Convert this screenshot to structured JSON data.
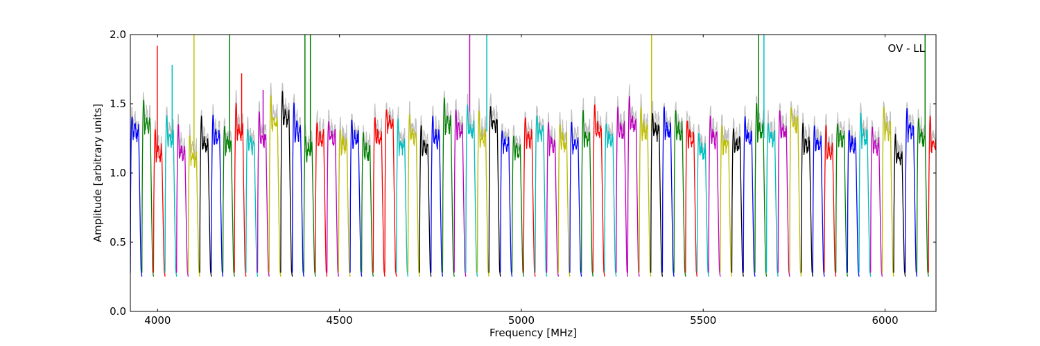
{
  "chart_data": {
    "type": "line",
    "title": "",
    "annotation": "OV - LL",
    "xlabel": "Frequency [MHz]",
    "ylabel": "Amplitude [arbitrary units]",
    "xlim": [
      3925,
      6140
    ],
    "ylim": [
      0.0,
      2.0
    ],
    "xticks": [
      4000,
      4500,
      5000,
      5500,
      6000
    ],
    "yticks": [
      0.0,
      0.5,
      1.0,
      1.5,
      2.0
    ],
    "ytick_labels": [
      "0.0",
      "0.5",
      "1.0",
      "1.5",
      "2.0"
    ],
    "grid": false,
    "legend": "none",
    "background_color": "#c0c0c0",
    "color_cycle": [
      "#0000ff",
      "#008000",
      "#ff0000",
      "#00bfbf",
      "#bf00bf",
      "#bfbf00",
      "#000000"
    ],
    "band_width_mhz": 31.8,
    "bands": [
      {
        "start": 3925.0,
        "color": "#0000ff",
        "level": 1.3,
        "spikes": []
      },
      {
        "start": 3956.8,
        "color": "#008000",
        "level": 1.35,
        "spikes": []
      },
      {
        "start": 3988.6,
        "color": "#ff0000",
        "level": 1.15,
        "spikes": [
          {
            "x": 3999.0,
            "y": 1.92
          }
        ]
      },
      {
        "start": 4020.4,
        "color": "#00bfbf",
        "level": 1.25,
        "spikes": [
          {
            "x": 4040.0,
            "y": 1.78
          }
        ]
      },
      {
        "start": 4052.2,
        "color": "#bf00bf",
        "level": 1.15,
        "spikes": []
      },
      {
        "start": 4084.0,
        "color": "#bfbf00",
        "level": 1.1,
        "spikes": [
          {
            "x": 4100.0,
            "y": 2.0
          }
        ]
      },
      {
        "start": 4115.8,
        "color": "#000000",
        "level": 1.2,
        "spikes": []
      },
      {
        "start": 4147.6,
        "color": "#0000ff",
        "level": 1.25,
        "spikes": []
      },
      {
        "start": 4179.4,
        "color": "#008000",
        "level": 1.2,
        "spikes": [
          {
            "x": 4198.0,
            "y": 2.0
          }
        ]
      },
      {
        "start": 4211.2,
        "color": "#ff0000",
        "level": 1.3,
        "spikes": [
          {
            "x": 4231.0,
            "y": 1.72
          }
        ]
      },
      {
        "start": 4243.0,
        "color": "#00bfbf",
        "level": 1.2,
        "spikes": []
      },
      {
        "start": 4274.8,
        "color": "#bf00bf",
        "level": 1.25,
        "spikes": [
          {
            "x": 4290.0,
            "y": 1.6
          }
        ]
      },
      {
        "start": 4306.6,
        "color": "#bfbf00",
        "level": 1.35,
        "spikes": []
      },
      {
        "start": 4338.4,
        "color": "#000000",
        "level": 1.4,
        "spikes": []
      },
      {
        "start": 4370.2,
        "color": "#0000ff",
        "level": 1.3,
        "spikes": []
      },
      {
        "start": 4402.0,
        "color": "#008000",
        "level": 1.15,
        "spikes": [
          {
            "x": 4405.0,
            "y": 2.0
          },
          {
            "x": 4420.0,
            "y": 2.0
          }
        ]
      },
      {
        "start": 4433.8,
        "color": "#ff0000",
        "level": 1.25,
        "spikes": []
      },
      {
        "start": 4465.6,
        "color": "#bf00bf",
        "level": 1.25,
        "spikes": []
      },
      {
        "start": 4497.4,
        "color": "#bfbf00",
        "level": 1.2,
        "spikes": []
      },
      {
        "start": 4529.2,
        "color": "#0000ff",
        "level": 1.25,
        "spikes": []
      },
      {
        "start": 4561.0,
        "color": "#008000",
        "level": 1.15,
        "spikes": []
      },
      {
        "start": 4592.8,
        "color": "#ff0000",
        "level": 1.25,
        "spikes": []
      },
      {
        "start": 4624.6,
        "color": "#ff0000",
        "level": 1.35,
        "spikes": []
      },
      {
        "start": 4656.4,
        "color": "#00bfbf",
        "level": 1.2,
        "spikes": []
      },
      {
        "start": 4688.2,
        "color": "#bfbf00",
        "level": 1.25,
        "spikes": []
      },
      {
        "start": 4720.0,
        "color": "#000000",
        "level": 1.18,
        "spikes": []
      },
      {
        "start": 4751.8,
        "color": "#0000ff",
        "level": 1.25,
        "spikes": []
      },
      {
        "start": 4783.6,
        "color": "#008000",
        "level": 1.35,
        "spikes": []
      },
      {
        "start": 4815.4,
        "color": "#bf00bf",
        "level": 1.3,
        "spikes": [
          {
            "x": 4858.0,
            "y": 2.0
          }
        ]
      },
      {
        "start": 4847.2,
        "color": "#00bfbf",
        "level": 1.3,
        "spikes": [
          {
            "x": 4905.0,
            "y": 2.0
          }
        ]
      },
      {
        "start": 4879.0,
        "color": "#bfbf00",
        "level": 1.25,
        "spikes": []
      },
      {
        "start": 4910.8,
        "color": "#000000",
        "level": 1.35,
        "spikes": []
      },
      {
        "start": 4942.6,
        "color": "#0000ff",
        "level": 1.2,
        "spikes": []
      },
      {
        "start": 4974.4,
        "color": "#008000",
        "level": 1.15,
        "spikes": []
      },
      {
        "start": 5006.2,
        "color": "#ff0000",
        "level": 1.25,
        "spikes": []
      },
      {
        "start": 5038.0,
        "color": "#00bfbf",
        "level": 1.3,
        "spikes": []
      },
      {
        "start": 5069.8,
        "color": "#bf00bf",
        "level": 1.2,
        "spikes": []
      },
      {
        "start": 5101.6,
        "color": "#bfbf00",
        "level": 1.22,
        "spikes": []
      },
      {
        "start": 5133.4,
        "color": "#0000ff",
        "level": 1.2,
        "spikes": []
      },
      {
        "start": 5165.2,
        "color": "#008000",
        "level": 1.25,
        "spikes": []
      },
      {
        "start": 5197.0,
        "color": "#ff0000",
        "level": 1.3,
        "spikes": []
      },
      {
        "start": 5228.8,
        "color": "#00bfbf",
        "level": 1.25,
        "spikes": []
      },
      {
        "start": 5260.6,
        "color": "#bf00bf",
        "level": 1.3,
        "spikes": []
      },
      {
        "start": 5292.4,
        "color": "#bf00bf",
        "level": 1.35,
        "spikes": []
      },
      {
        "start": 5324.2,
        "color": "#bfbf00",
        "level": 1.3,
        "spikes": [
          {
            "x": 5358.0,
            "y": 2.0
          }
        ]
      },
      {
        "start": 5356.0,
        "color": "#000000",
        "level": 1.3,
        "spikes": []
      },
      {
        "start": 5387.8,
        "color": "#0000ff",
        "level": 1.3,
        "spikes": []
      },
      {
        "start": 5419.6,
        "color": "#008000",
        "level": 1.3,
        "spikes": []
      },
      {
        "start": 5451.4,
        "color": "#ff0000",
        "level": 1.25,
        "spikes": []
      },
      {
        "start": 5483.2,
        "color": "#00bfbf",
        "level": 1.15,
        "spikes": []
      },
      {
        "start": 5515.0,
        "color": "#bf00bf",
        "level": 1.25,
        "spikes": []
      },
      {
        "start": 5546.8,
        "color": "#bfbf00",
        "level": 1.2,
        "spikes": []
      },
      {
        "start": 5578.6,
        "color": "#000000",
        "level": 1.2,
        "spikes": []
      },
      {
        "start": 5610.4,
        "color": "#0000ff",
        "level": 1.25,
        "spikes": []
      },
      {
        "start": 5642.2,
        "color": "#008000",
        "level": 1.3,
        "spikes": [
          {
            "x": 5652.0,
            "y": 2.0
          }
        ]
      },
      {
        "start": 5674.0,
        "color": "#00bfbf",
        "level": 1.25,
        "spikes": [
          {
            "x": 5667.0,
            "y": 2.0
          }
        ]
      },
      {
        "start": 5705.8,
        "color": "#bf00bf",
        "level": 1.3,
        "spikes": []
      },
      {
        "start": 5737.6,
        "color": "#bfbf00",
        "level": 1.35,
        "spikes": []
      },
      {
        "start": 5769.4,
        "color": "#000000",
        "level": 1.2,
        "spikes": []
      },
      {
        "start": 5801.2,
        "color": "#0000ff",
        "level": 1.2,
        "spikes": []
      },
      {
        "start": 5833.0,
        "color": "#ff0000",
        "level": 1.15,
        "spikes": []
      },
      {
        "start": 5864.8,
        "color": "#008000",
        "level": 1.25,
        "spikes": []
      },
      {
        "start": 5896.6,
        "color": "#0000ff",
        "level": 1.2,
        "spikes": []
      },
      {
        "start": 5928.4,
        "color": "#00bfbf",
        "level": 1.25,
        "spikes": []
      },
      {
        "start": 5960.2,
        "color": "#bf00bf",
        "level": 1.2,
        "spikes": []
      },
      {
        "start": 5992.0,
        "color": "#bfbf00",
        "level": 1.3,
        "spikes": []
      },
      {
        "start": 6023.8,
        "color": "#000000",
        "level": 1.1,
        "spikes": []
      },
      {
        "start": 6055.6,
        "color": "#0000ff",
        "level": 1.3,
        "spikes": []
      },
      {
        "start": 6087.4,
        "color": "#008000",
        "level": 1.25,
        "spikes": [
          {
            "x": 6110.0,
            "y": 2.0
          }
        ]
      },
      {
        "start": 6119.2,
        "color": "#ff0000",
        "level": 1.2,
        "spikes": []
      }
    ]
  }
}
